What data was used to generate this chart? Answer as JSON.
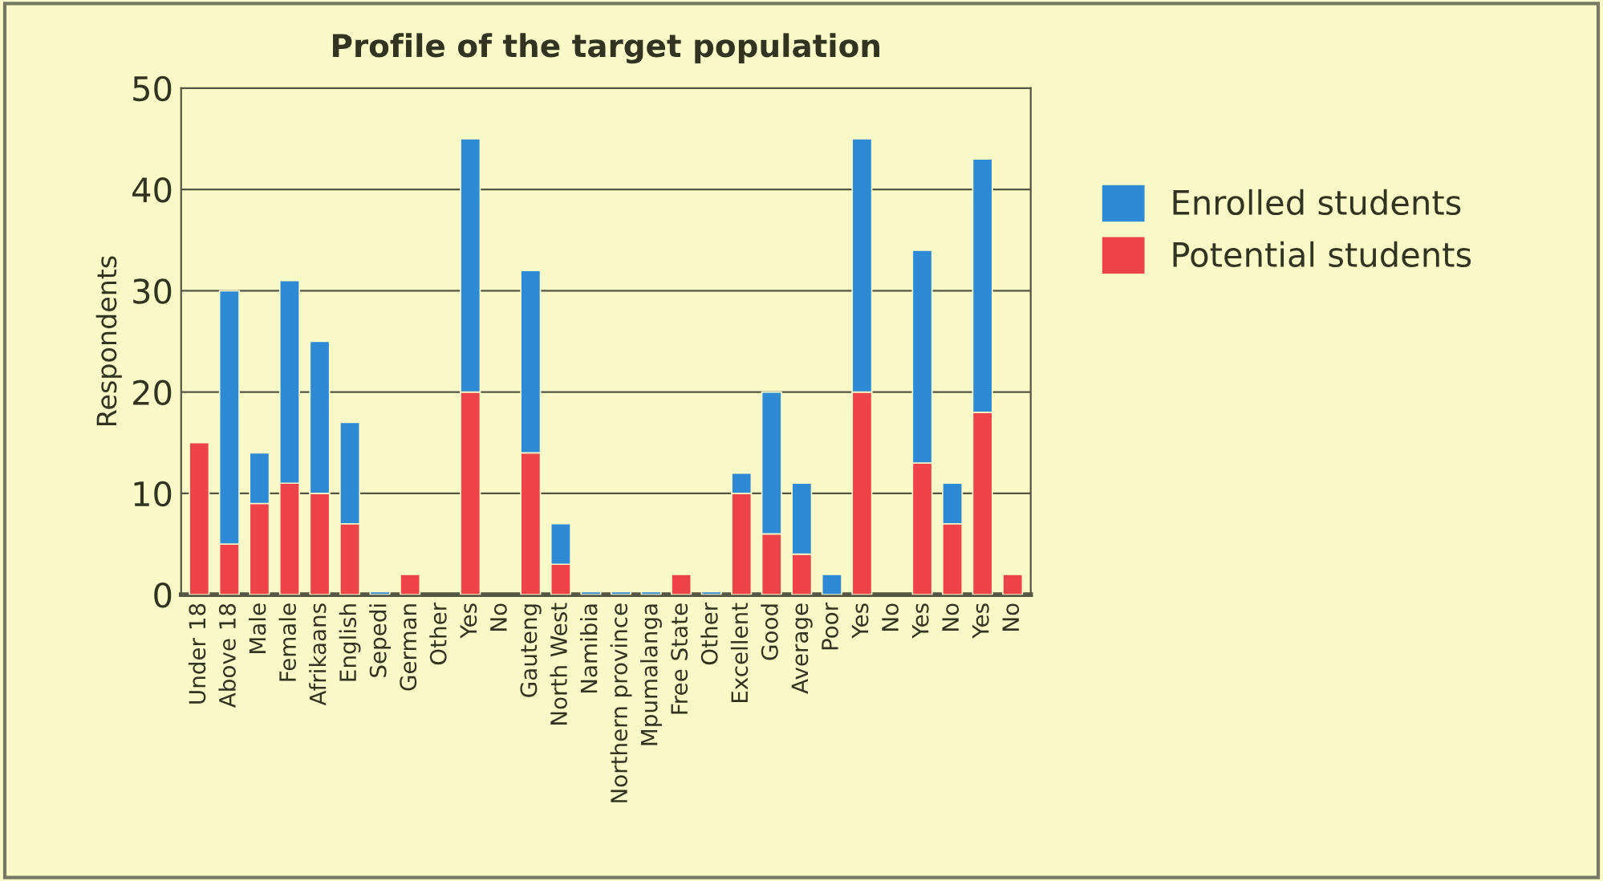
{
  "chart_data": {
    "type": "bar",
    "title": "Profile of the target population",
    "ylabel": "Respondents",
    "stacked": true,
    "categories": [
      "Under 18",
      "Above 18",
      "Male",
      "Female",
      "Afrikaans",
      "English",
      "Sepedi",
      "German",
      "Other",
      "Yes",
      "No",
      "Gauteng",
      "North West",
      "Namibia",
      "Northern province",
      "Mpumalanga",
      "Free State",
      "Other",
      "Excellent",
      "Good",
      "Average",
      "Poor",
      "Yes",
      "No",
      "Yes",
      "No",
      "Yes",
      "No"
    ],
    "series": [
      {
        "name": "Potential students",
        "color": "#ee4449",
        "values": [
          15,
          5,
          9,
          11,
          10,
          7,
          null,
          2,
          null,
          20,
          null,
          14,
          3,
          null,
          null,
          null,
          2,
          null,
          10,
          6,
          4,
          null,
          20,
          null,
          13,
          7,
          18,
          2
        ]
      },
      {
        "name": "Enrolled students",
        "color": "#2f8ad6",
        "values": [
          null,
          25,
          5,
          20,
          15,
          10,
          0.3,
          null,
          null,
          25,
          null,
          18,
          4,
          0.3,
          0.3,
          0.3,
          null,
          0.3,
          2,
          14,
          7,
          2,
          25,
          null,
          21,
          4,
          25,
          null
        ]
      }
    ],
    "ylim": [
      0,
      50
    ],
    "yticks": [
      0,
      10,
      20,
      30,
      40,
      50
    ],
    "grid": "y",
    "legend": "right"
  }
}
